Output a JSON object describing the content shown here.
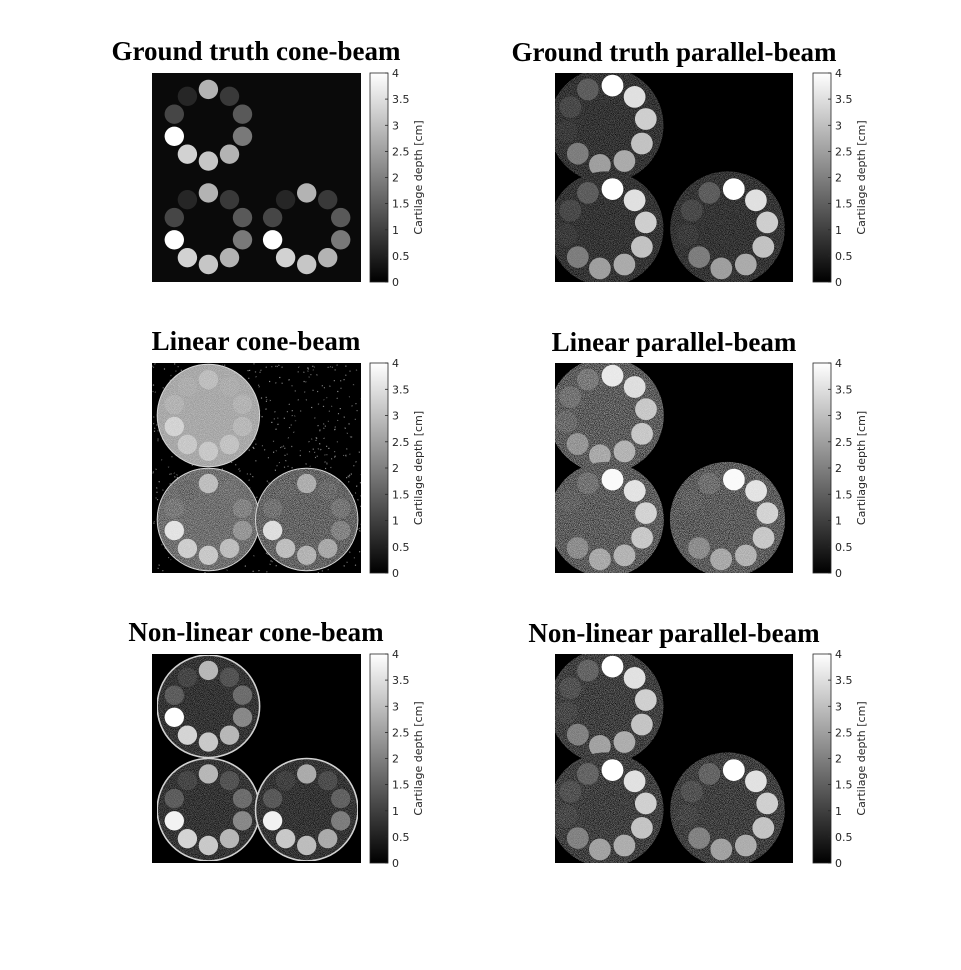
{
  "figure": {
    "colormap": "gray",
    "background": "#ffffff",
    "image_background": "#000000"
  },
  "chart_data": [
    {
      "type": "heatmap",
      "title": "Ground truth cone-beam",
      "geometry": "cone",
      "method": "ground_truth",
      "noise": "none",
      "colorbar": {
        "label": "Cartilage depth [cm]",
        "ticks": [
          "0",
          "0.5",
          "1",
          "1.5",
          "2",
          "2.5",
          "3",
          "3.5",
          "4"
        ],
        "range": [
          0,
          4
        ]
      },
      "phantoms": [
        {
          "name": "upper-left",
          "inserts": [
            2.8,
            0.9,
            1.4,
            1.9,
            2.8,
            3.1,
            3.3,
            4.0,
            1.1,
            0.6
          ]
        },
        {
          "name": "lower-left",
          "inserts": [
            2.8,
            0.9,
            1.4,
            1.9,
            2.8,
            3.1,
            3.3,
            4.0,
            1.1,
            0.6
          ]
        },
        {
          "name": "lower-right",
          "inserts": [
            2.8,
            0.9,
            1.4,
            1.9,
            2.8,
            3.1,
            3.3,
            4.0,
            1.1,
            0.6
          ]
        }
      ]
    },
    {
      "type": "heatmap",
      "title": "Ground truth parallel-beam",
      "geometry": "parallel",
      "method": "ground_truth",
      "noise": "low",
      "colorbar": {
        "label": "Cartilage depth [cm]",
        "ticks": [
          "0",
          "0.5",
          "1",
          "1.5",
          "2",
          "2.5",
          "3",
          "3.5",
          "4"
        ],
        "range": [
          0,
          4
        ]
      },
      "phantoms": [
        {
          "name": "upper-left",
          "inserts": [
            4.0,
            3.5,
            3.2,
            3.0,
            2.6,
            2.4,
            1.8,
            0.4,
            0.8,
            1.2
          ]
        },
        {
          "name": "lower-left",
          "inserts": [
            4.0,
            3.5,
            3.2,
            3.0,
            2.6,
            2.4,
            1.8,
            0.4,
            0.8,
            1.2
          ]
        },
        {
          "name": "lower-right",
          "inserts": [
            4.0,
            3.5,
            3.2,
            3.0,
            2.6,
            2.4,
            1.8,
            0.4,
            0.8,
            1.2
          ]
        }
      ]
    },
    {
      "type": "heatmap",
      "title": "Linear cone-beam",
      "geometry": "cone",
      "method": "linear",
      "noise": "high",
      "colorbar": {
        "label": "Cartilage depth [cm]",
        "ticks": [
          "0",
          "0.5",
          "1",
          "1.5",
          "2",
          "2.5",
          "3",
          "3.5",
          "4"
        ],
        "range": [
          0,
          4
        ]
      },
      "phantoms": [
        {
          "name": "upper-left",
          "inserts": [
            2.8,
            2.5,
            2.6,
            2.7,
            2.9,
            3.0,
            3.0,
            3.2,
            2.6,
            2.5
          ]
        },
        {
          "name": "lower-left",
          "inserts": [
            2.8,
            1.2,
            1.6,
            2.0,
            2.8,
            3.0,
            3.1,
            3.5,
            1.4,
            1.0
          ]
        },
        {
          "name": "lower-right",
          "inserts": [
            2.5,
            1.0,
            1.3,
            1.6,
            2.4,
            2.6,
            2.8,
            3.4,
            1.2,
            0.9
          ]
        }
      ]
    },
    {
      "type": "heatmap",
      "title": "Linear parallel-beam",
      "geometry": "parallel",
      "method": "linear",
      "noise": "high",
      "colorbar": {
        "label": "Cartilage depth [cm]",
        "ticks": [
          "0",
          "0.5",
          "1",
          "1.5",
          "2",
          "2.5",
          "3",
          "3.5",
          "4"
        ],
        "range": [
          0,
          4
        ]
      },
      "phantoms": [
        {
          "name": "upper-left",
          "inserts": [
            3.6,
            3.4,
            3.0,
            3.0,
            2.6,
            2.4,
            2.0,
            1.0,
            1.2,
            1.4
          ]
        },
        {
          "name": "lower-left",
          "inserts": [
            3.9,
            3.5,
            3.2,
            3.0,
            2.6,
            2.4,
            1.8,
            0.5,
            0.8,
            1.2
          ]
        },
        {
          "name": "lower-right",
          "inserts": [
            3.9,
            3.5,
            3.2,
            3.0,
            2.6,
            2.4,
            1.8,
            0.4,
            0.7,
            1.1
          ]
        }
      ]
    },
    {
      "type": "heatmap",
      "title": "Non-linear cone-beam",
      "geometry": "cone",
      "method": "non_linear",
      "noise": "low",
      "colorbar": {
        "label": "Cartilage depth [cm]",
        "ticks": [
          "0",
          "0.5",
          "1",
          "1.5",
          "2",
          "2.5",
          "3",
          "3.5",
          "4"
        ],
        "range": [
          0,
          4
        ]
      },
      "phantoms": [
        {
          "name": "upper-left",
          "inserts": [
            2.8,
            1.0,
            1.5,
            2.0,
            2.8,
            3.1,
            3.3,
            4.0,
            1.2,
            0.7
          ]
        },
        {
          "name": "lower-left",
          "inserts": [
            2.8,
            1.0,
            1.5,
            2.0,
            2.8,
            3.1,
            3.3,
            3.8,
            1.2,
            0.7
          ]
        },
        {
          "name": "lower-right",
          "inserts": [
            2.6,
            0.9,
            1.3,
            1.8,
            2.6,
            2.9,
            3.1,
            3.8,
            1.1,
            0.6
          ]
        }
      ]
    },
    {
      "type": "heatmap",
      "title": "Non-linear parallel-beam",
      "geometry": "parallel",
      "method": "non_linear",
      "noise": "medium",
      "colorbar": {
        "label": "Cartilage depth [cm]",
        "ticks": [
          "0",
          "0.5",
          "1",
          "1.5",
          "2",
          "2.5",
          "3",
          "3.5",
          "4"
        ],
        "range": [
          0,
          4
        ]
      },
      "phantoms": [
        {
          "name": "upper-left",
          "inserts": [
            4.0,
            3.5,
            3.2,
            3.0,
            2.6,
            2.4,
            1.8,
            0.5,
            0.8,
            1.2
          ]
        },
        {
          "name": "lower-left",
          "inserts": [
            4.0,
            3.5,
            3.2,
            3.0,
            2.6,
            2.4,
            1.8,
            0.5,
            0.8,
            1.2
          ]
        },
        {
          "name": "lower-right",
          "inserts": [
            4.0,
            3.5,
            3.2,
            3.0,
            2.6,
            2.4,
            1.8,
            0.4,
            0.8,
            1.2
          ]
        }
      ]
    }
  ]
}
